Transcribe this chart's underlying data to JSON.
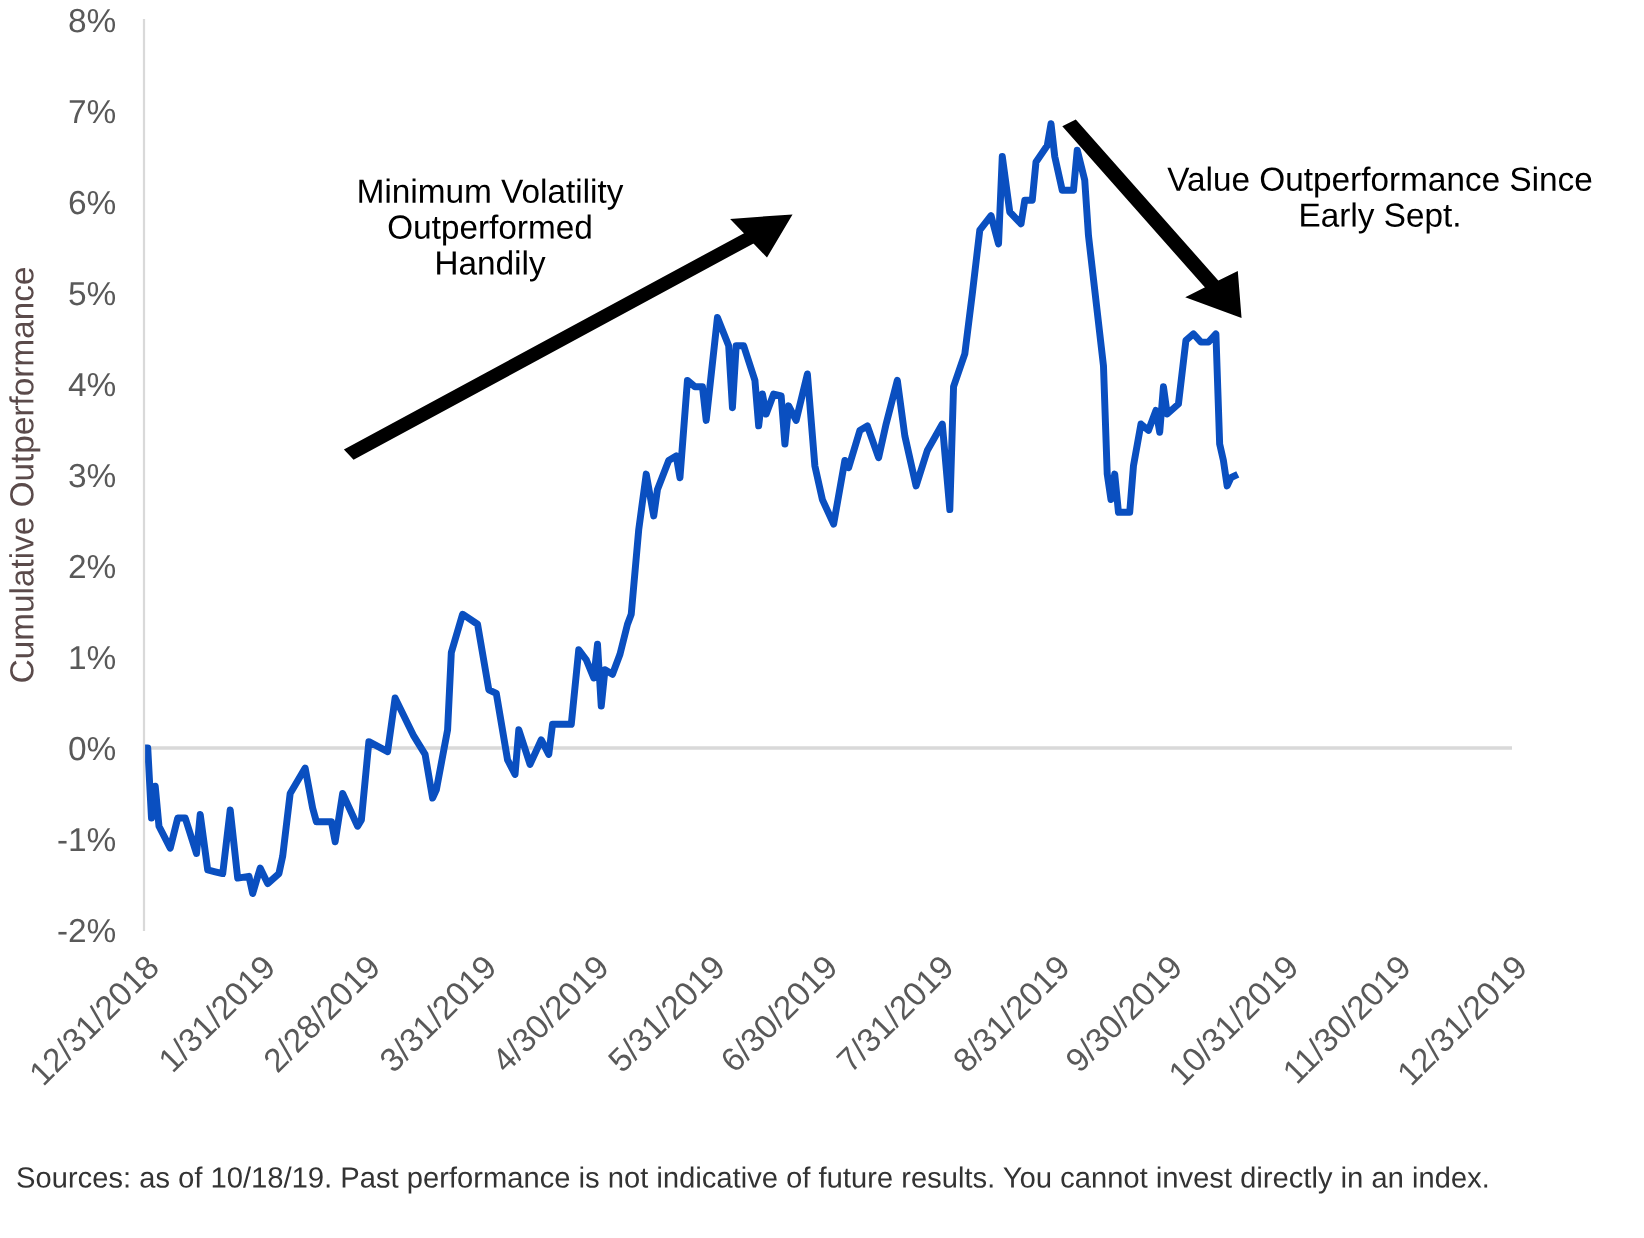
{
  "chart_data": {
    "type": "line",
    "ylabel": "Cumulative Outperformance",
    "annotations": [
      "Minimum Volatility\nOutperformed\nHandily",
      "Value Outperformance Since\nEarly Sept.",
      "Sources: as of 10/18/19. Past performance is not indicative of future results. You cannot invest directly in an index."
    ],
    "x": [
      "2018-12-31",
      "2019-01-01",
      "2019-01-02",
      "2019-01-03",
      "2019-01-04",
      "2019-01-07",
      "2019-01-09",
      "2019-01-11",
      "2019-01-14",
      "2019-01-15",
      "2019-01-17",
      "2019-01-19",
      "2019-01-21",
      "2019-01-23",
      "2019-01-25",
      "2019-01-28",
      "2019-01-29",
      "2019-01-31",
      "2019-02-02",
      "2019-02-05",
      "2019-02-06",
      "2019-02-08",
      "2019-02-12",
      "2019-02-14",
      "2019-02-15",
      "2019-02-19",
      "2019-02-20",
      "2019-02-22",
      "2019-02-26",
      "2019-02-27",
      "2019-03-01",
      "2019-03-06",
      "2019-03-08",
      "2019-03-13",
      "2019-03-16",
      "2019-03-18",
      "2019-03-19",
      "2019-03-22",
      "2019-03-23",
      "2019-03-26",
      "2019-03-30",
      "2019-04-02",
      "2019-04-04",
      "2019-04-07",
      "2019-04-09",
      "2019-04-10",
      "2019-04-13",
      "2019-04-16",
      "2019-04-18",
      "2019-04-19",
      "2019-04-24",
      "2019-04-26",
      "2019-04-28",
      "2019-04-30",
      "2019-05-01",
      "2019-05-02",
      "2019-05-03",
      "2019-05-05",
      "2019-05-07",
      "2019-05-09",
      "2019-05-10",
      "2019-05-12",
      "2019-05-14",
      "2019-05-16",
      "2019-05-17",
      "2019-05-20",
      "2019-05-22",
      "2019-05-23",
      "2019-05-25",
      "2019-05-27",
      "2019-05-29",
      "2019-05-30",
      "2019-06-02",
      "2019-06-05",
      "2019-06-06",
      "2019-06-07",
      "2019-06-09",
      "2019-06-12",
      "2019-06-13",
      "2019-06-14",
      "2019-06-15",
      "2019-06-17",
      "2019-06-19",
      "2019-06-20",
      "2019-06-21",
      "2019-06-23",
      "2019-06-26",
      "2019-06-28",
      "2019-06-30",
      "2019-07-03",
      "2019-07-06",
      "2019-07-07",
      "2019-07-10",
      "2019-07-12",
      "2019-07-15",
      "2019-07-17",
      "2019-07-20",
      "2019-07-22",
      "2019-07-25",
      "2019-07-28",
      "2019-08-01",
      "2019-08-03",
      "2019-08-04",
      "2019-08-07",
      "2019-08-09",
      "2019-08-11",
      "2019-08-14",
      "2019-08-16",
      "2019-08-17",
      "2019-08-19",
      "2019-08-22",
      "2019-08-23",
      "2019-08-25",
      "2019-08-26",
      "2019-08-29",
      "2019-08-30",
      "2019-08-31",
      "2019-09-02",
      "2019-09-05",
      "2019-09-06",
      "2019-09-08",
      "2019-09-09",
      "2019-09-13",
      "2019-09-14",
      "2019-09-15",
      "2019-09-16",
      "2019-09-17",
      "2019-09-20",
      "2019-09-21",
      "2019-09-23",
      "2019-09-25",
      "2019-09-27",
      "2019-09-28",
      "2019-09-29",
      "2019-09-30",
      "2019-10-03",
      "2019-10-05",
      "2019-10-07",
      "2019-10-09",
      "2019-10-11",
      "2019-10-13",
      "2019-10-14",
      "2019-10-15",
      "2019-10-16",
      "2019-10-17",
      "2019-10-18"
    ],
    "series": [
      {
        "color": "#0a4fc0",
        "values": [
          0,
          0,
          -0.77,
          -0.42,
          -0.86,
          -1.1,
          -0.77,
          -0.77,
          -1.16,
          -0.73,
          -1.34,
          -1.36,
          -1.38,
          -0.68,
          -1.43,
          -1.41,
          -1.6,
          -1.32,
          -1.49,
          -1.38,
          -1.19,
          -0.5,
          -0.22,
          -0.66,
          -0.81,
          -0.81,
          -1.03,
          -0.5,
          -0.86,
          -0.79,
          0.07,
          -0.04,
          0.55,
          0.13,
          -0.07,
          -0.55,
          -0.46,
          0.2,
          1.05,
          1.47,
          1.36,
          0.64,
          0.6,
          -0.13,
          -0.29,
          0.2,
          -0.18,
          0.09,
          -0.07,
          0.26,
          0.26,
          1.08,
          0.97,
          0.77,
          1.14,
          0.46,
          0.86,
          0.81,
          1.03,
          1.36,
          1.47,
          2.4,
          3.01,
          2.55,
          2.84,
          3.16,
          3.21,
          2.97,
          4.04,
          3.97,
          3.97,
          3.6,
          4.73,
          4.42,
          3.74,
          4.42,
          4.42,
          4.04,
          3.54,
          3.89,
          3.67,
          3.89,
          3.87,
          3.34,
          3.76,
          3.6,
          4.11,
          3.1,
          2.73,
          2.46,
          3.16,
          3.08,
          3.49,
          3.54,
          3.19,
          3.56,
          4.04,
          3.43,
          2.88,
          3.27,
          3.56,
          2.62,
          3.97,
          4.33,
          4.99,
          5.69,
          5.85,
          5.54,
          6.5,
          5.89,
          5.76,
          6.02,
          6.02,
          6.44,
          6.62,
          6.86,
          6.5,
          6.13,
          6.13,
          6.57,
          6.24,
          5.63,
          4.2,
          3.01,
          2.73,
          3.01,
          2.59,
          2.59,
          3.1,
          3.56,
          3.49,
          3.71,
          3.47,
          3.97,
          3.67,
          3.78,
          4.48,
          4.55,
          4.46,
          4.46,
          4.55,
          3.34,
          3.16,
          2.88,
          2.97,
          2.99
        ]
      }
    ],
    "xlim": [
      "2018-12-31",
      "2019-12-31"
    ],
    "xticks": [
      {
        "value": "2018-12-31",
        "label": "12/31/2018"
      },
      {
        "value": "2019-01-31",
        "label": "1/31/2019"
      },
      {
        "value": "2019-02-28",
        "label": "2/28/2019"
      },
      {
        "value": "2019-03-31",
        "label": "3/31/2019"
      },
      {
        "value": "2019-04-30",
        "label": "4/30/2019"
      },
      {
        "value": "2019-05-31",
        "label": "5/31/2019"
      },
      {
        "value": "2019-06-30",
        "label": "6/30/2019"
      },
      {
        "value": "2019-07-31",
        "label": "7/31/2019"
      },
      {
        "value": "2019-08-31",
        "label": "8/31/2019"
      },
      {
        "value": "2019-09-30",
        "label": "9/30/2019"
      },
      {
        "value": "2019-10-31",
        "label": "10/31/2019"
      },
      {
        "value": "2019-11-30",
        "label": "11/30/2019"
      },
      {
        "value": "2019-12-31",
        "label": "12/31/2019"
      }
    ],
    "ylim": [
      -2,
      8
    ],
    "yticks": [
      {
        "value": -2,
        "label": "-2%"
      },
      {
        "value": -1,
        "label": "-1%"
      },
      {
        "value": 0,
        "label": "0%"
      },
      {
        "value": 1,
        "label": "1%"
      },
      {
        "value": 2,
        "label": "2%"
      },
      {
        "value": 3,
        "label": "3%"
      },
      {
        "value": 4,
        "label": "4%"
      },
      {
        "value": 5,
        "label": "5%"
      },
      {
        "value": 6,
        "label": "6%"
      },
      {
        "value": 7,
        "label": "7%"
      },
      {
        "value": 8,
        "label": "8%"
      }
    ],
    "ref_lines": [
      {
        "axis": "y",
        "value": 0,
        "color": "#d9d9d9"
      }
    ],
    "grid": false,
    "legend": false,
    "marker": "none",
    "line_style": "solid"
  }
}
